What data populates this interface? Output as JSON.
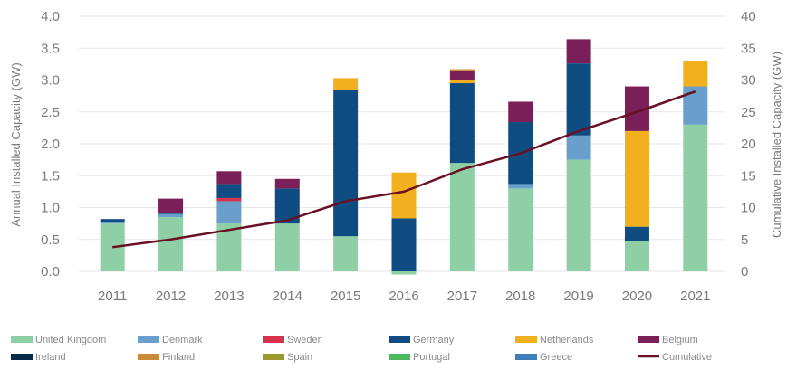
{
  "chart_data": {
    "type": "bar",
    "stacked": true,
    "categories": [
      "2011",
      "2012",
      "2013",
      "2014",
      "2015",
      "2016",
      "2017",
      "2018",
      "2019",
      "2020",
      "2021"
    ],
    "ylabel": "Annual Installed Capacity (GW)",
    "y2label": "Cumulative Installed Capacity (GW)",
    "ylim": [
      0,
      4
    ],
    "y2lim": [
      0,
      40
    ],
    "yticks": [
      "0.0",
      "0.5",
      "1.0",
      "1.5",
      "2.0",
      "2.5",
      "3.0",
      "3.5",
      "4.0"
    ],
    "y2ticks": [
      "0",
      "5",
      "10",
      "15",
      "20",
      "25",
      "30",
      "35",
      "40"
    ],
    "grid": true,
    "legend_position": "bottom",
    "series": [
      {
        "name": "United Kingdom",
        "color": "#8fcfa5",
        "values": [
          0.75,
          0.85,
          0.75,
          0.75,
          0.55,
          -0.05,
          1.7,
          1.3,
          1.75,
          0.48,
          2.3
        ]
      },
      {
        "name": "Denmark",
        "color": "#6a9fcc",
        "values": [
          0.03,
          0.05,
          0.35,
          0,
          0,
          0,
          0,
          0.07,
          0.38,
          0,
          0.6
        ]
      },
      {
        "name": "Sweden",
        "color": "#d6334e",
        "values": [
          0,
          0,
          0.05,
          0,
          0,
          0,
          0,
          0,
          0,
          0,
          0
        ]
      },
      {
        "name": "Germany",
        "color": "#0f4c81",
        "values": [
          0.04,
          0.02,
          0.22,
          0.55,
          2.3,
          0.83,
          1.25,
          0.97,
          1.13,
          0.22,
          0
        ]
      },
      {
        "name": "Netherlands",
        "color": "#f2b01e",
        "values": [
          0,
          0,
          0,
          0,
          0.18,
          0.72,
          0.05,
          0,
          0,
          1.5,
          0.4
        ]
      },
      {
        "name": "Belgium",
        "color": "#7a1f57",
        "values": [
          0,
          0.22,
          0.2,
          0.15,
          0,
          0,
          0.15,
          0.32,
          0.38,
          0.7,
          0
        ]
      },
      {
        "name": "Ireland",
        "color": "#0a2a4a",
        "values": [
          0,
          0,
          0,
          0,
          0,
          0,
          0,
          0,
          0,
          0,
          0
        ]
      },
      {
        "name": "Finland",
        "color": "#c98a3a",
        "values": [
          0,
          0,
          0,
          0,
          0,
          0,
          0.02,
          0,
          0,
          0,
          0
        ]
      },
      {
        "name": "Spain",
        "color": "#9a9a2a",
        "values": [
          0,
          0,
          0,
          0,
          0,
          0,
          0,
          0,
          0,
          0,
          0
        ]
      },
      {
        "name": "Portugal",
        "color": "#4bb860",
        "values": [
          0,
          0,
          0,
          0,
          0,
          0,
          0,
          0,
          0,
          0,
          0
        ]
      },
      {
        "name": "Greece",
        "color": "#3c7fb8",
        "values": [
          0,
          0,
          0,
          0,
          0,
          0,
          0,
          0,
          0,
          0,
          0
        ]
      }
    ],
    "line_series": {
      "name": "Cumulative",
      "color": "#6a1024",
      "axis": "secondary",
      "values": [
        3.8,
        5.0,
        6.5,
        8.0,
        11.0,
        12.5,
        16.0,
        18.5,
        22.0,
        25.0,
        28.2
      ]
    }
  }
}
